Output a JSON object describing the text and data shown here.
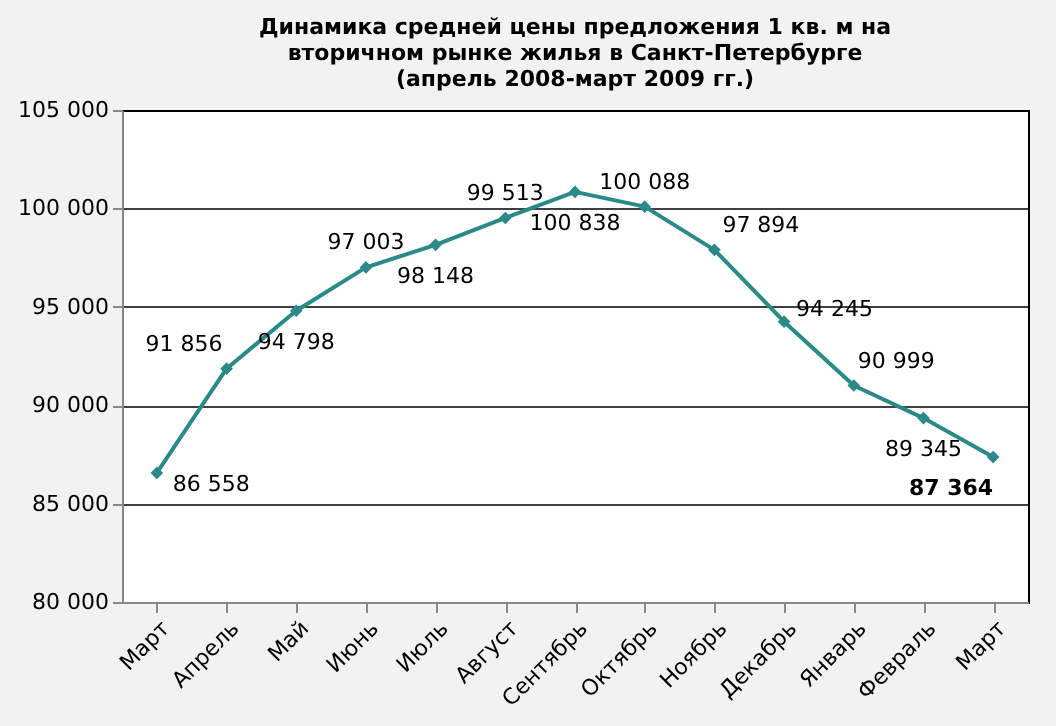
{
  "chart_data": {
    "type": "line",
    "title": [
      "Динамика средней цены предложения 1 кв. м на",
      "вторичном рынке жилья в Санкт-Петербурге",
      "(апрель 2008-март 2009 гг.)"
    ],
    "categories": [
      "Март",
      "Апрель",
      "Май",
      "Июнь",
      "Июль",
      "Август",
      "Сентябрь",
      "Октябрь",
      "Ноябрь",
      "Декабрь",
      "Январь",
      "Февраль",
      "Март"
    ],
    "series": [
      {
        "color": "#2a8a8a",
        "values": [
          86558,
          91856,
          94798,
          97003,
          98148,
          99513,
          100838,
          100088,
          97894,
          94245,
          90999,
          89345,
          87364
        ],
        "value_labels": [
          "86 558",
          "91 856",
          "94 798",
          "97 003",
          "98 148",
          "99 513",
          "100 838",
          "100 088",
          "97 894",
          "94 245",
          "90 999",
          "89 345",
          "87 364"
        ]
      }
    ],
    "ylim": [
      80000,
      105000
    ],
    "yticks": [
      {
        "value": 80000,
        "label": "80 000"
      },
      {
        "value": 85000,
        "label": "85 000"
      },
      {
        "value": 90000,
        "label": "90 000"
      },
      {
        "value": 95000,
        "label": "95 000"
      },
      {
        "value": 100000,
        "label": "100 000"
      },
      {
        "value": 105000,
        "label": "105 000"
      }
    ],
    "grid": "y",
    "marker": "diamond",
    "line_style": "solid"
  }
}
